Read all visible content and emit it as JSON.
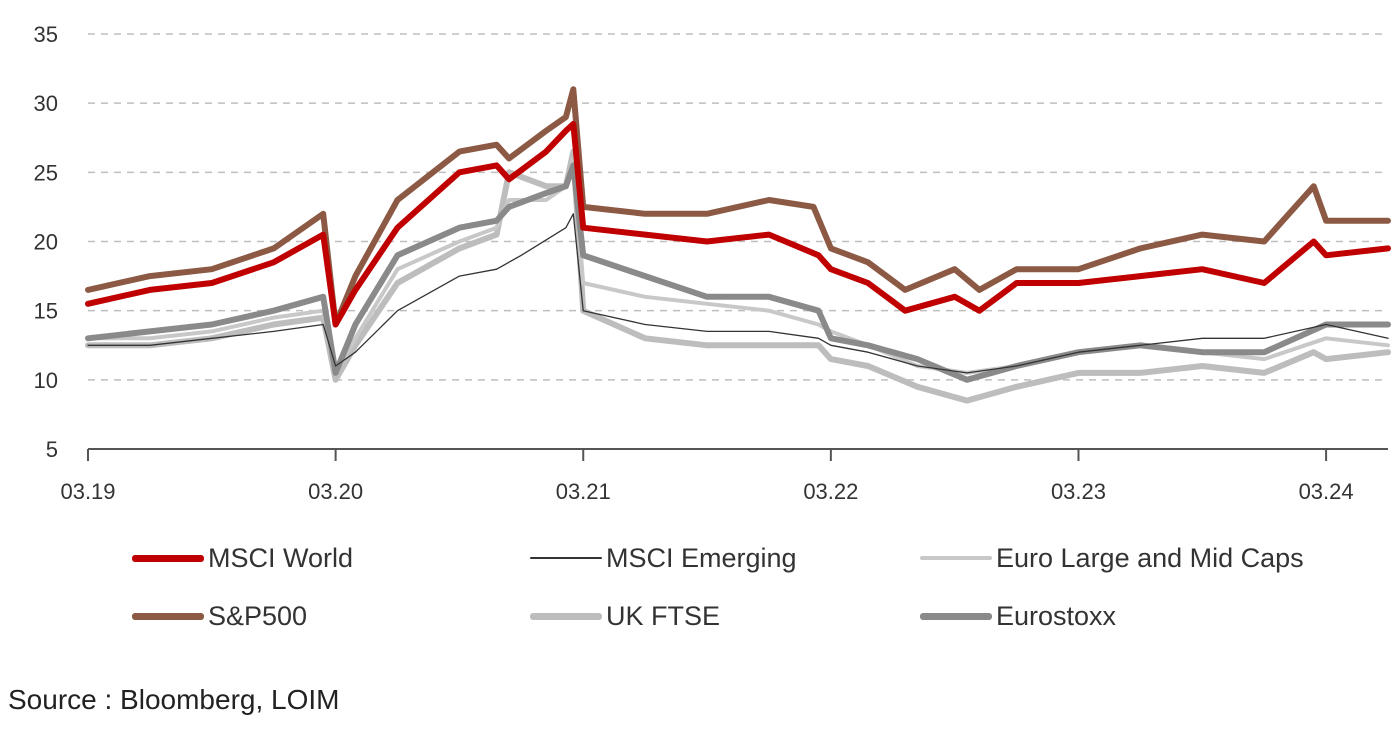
{
  "chart_data": {
    "type": "line",
    "title": "",
    "xlabel": "",
    "ylabel": "",
    "ylim": [
      5,
      35
    ],
    "yticks": [
      5,
      10,
      15,
      20,
      25,
      30,
      35
    ],
    "xlim": [
      2019.0,
      2024.25
    ],
    "xticks": [
      {
        "value": 2019,
        "label": "03.19"
      },
      {
        "value": 2020,
        "label": "03.20"
      },
      {
        "value": 2021,
        "label": "03.21"
      },
      {
        "value": 2022,
        "label": "03.22"
      },
      {
        "value": 2023,
        "label": "03.23"
      },
      {
        "value": 2024,
        "label": "03.24"
      }
    ],
    "grid": "horizontal-dashed",
    "legend_position": "bottom",
    "series": [
      {
        "name": "MSCI World",
        "color": "#c00000",
        "weight": "thick",
        "points": [
          [
            2019.0,
            15.5
          ],
          [
            2019.25,
            16.5
          ],
          [
            2019.5,
            17
          ],
          [
            2019.75,
            18.5
          ],
          [
            2019.95,
            20.5
          ],
          [
            2020.0,
            14
          ],
          [
            2020.08,
            16.5
          ],
          [
            2020.25,
            21
          ],
          [
            2020.5,
            25
          ],
          [
            2020.65,
            25.5
          ],
          [
            2020.7,
            24.5
          ],
          [
            2020.85,
            26.5
          ],
          [
            2020.93,
            28
          ],
          [
            2020.96,
            28.5
          ],
          [
            2021.0,
            21
          ],
          [
            2021.25,
            20.5
          ],
          [
            2021.5,
            20
          ],
          [
            2021.75,
            20.5
          ],
          [
            2021.95,
            19
          ],
          [
            2022.0,
            18
          ],
          [
            2022.15,
            17
          ],
          [
            2022.3,
            15
          ],
          [
            2022.5,
            16
          ],
          [
            2022.6,
            15
          ],
          [
            2022.75,
            17
          ],
          [
            2023.0,
            17
          ],
          [
            2023.25,
            17.5
          ],
          [
            2023.5,
            18
          ],
          [
            2023.75,
            17
          ],
          [
            2023.95,
            20
          ],
          [
            2024.0,
            19
          ],
          [
            2024.25,
            19.5
          ]
        ]
      },
      {
        "name": "MSCI Emerging",
        "color": "#333333",
        "weight": "thin",
        "points": [
          [
            2019.0,
            12.5
          ],
          [
            2019.25,
            12.5
          ],
          [
            2019.5,
            13
          ],
          [
            2019.75,
            13.5
          ],
          [
            2019.95,
            14
          ],
          [
            2020.0,
            11
          ],
          [
            2020.08,
            12
          ],
          [
            2020.25,
            15
          ],
          [
            2020.5,
            17.5
          ],
          [
            2020.65,
            18
          ],
          [
            2020.75,
            19
          ],
          [
            2020.93,
            21
          ],
          [
            2020.96,
            22
          ],
          [
            2021.0,
            15
          ],
          [
            2021.25,
            14
          ],
          [
            2021.5,
            13.5
          ],
          [
            2021.75,
            13.5
          ],
          [
            2021.95,
            13
          ],
          [
            2022.0,
            12.5
          ],
          [
            2022.15,
            12
          ],
          [
            2022.35,
            11
          ],
          [
            2022.55,
            10.5
          ],
          [
            2022.75,
            11
          ],
          [
            2023.0,
            12
          ],
          [
            2023.25,
            12.5
          ],
          [
            2023.5,
            13
          ],
          [
            2023.75,
            13
          ],
          [
            2024.0,
            14
          ],
          [
            2024.25,
            13
          ]
        ]
      },
      {
        "name": "Euro Large and Mid Caps",
        "color": "#c8c8c8",
        "weight": "medium",
        "points": [
          [
            2019.0,
            13
          ],
          [
            2019.25,
            13
          ],
          [
            2019.5,
            13.5
          ],
          [
            2019.75,
            14.5
          ],
          [
            2019.95,
            15
          ],
          [
            2020.0,
            10.5
          ],
          [
            2020.08,
            13
          ],
          [
            2020.25,
            18
          ],
          [
            2020.5,
            20
          ],
          [
            2020.65,
            21
          ],
          [
            2020.7,
            23
          ],
          [
            2020.85,
            23
          ],
          [
            2020.93,
            24
          ],
          [
            2020.96,
            26
          ],
          [
            2021.0,
            17
          ],
          [
            2021.25,
            16
          ],
          [
            2021.5,
            15.5
          ],
          [
            2021.75,
            15
          ],
          [
            2021.95,
            14
          ],
          [
            2022.0,
            13.5
          ],
          [
            2022.15,
            12.5
          ],
          [
            2022.35,
            11
          ],
          [
            2022.55,
            10.5
          ],
          [
            2022.75,
            11
          ],
          [
            2023.0,
            12
          ],
          [
            2023.25,
            12.5
          ],
          [
            2023.5,
            12
          ],
          [
            2023.75,
            11.5
          ],
          [
            2024.0,
            13
          ],
          [
            2024.25,
            12.5
          ]
        ]
      },
      {
        "name": "S&P500",
        "color": "#8c5a44",
        "weight": "thick",
        "points": [
          [
            2019.0,
            16.5
          ],
          [
            2019.25,
            17.5
          ],
          [
            2019.5,
            18
          ],
          [
            2019.75,
            19.5
          ],
          [
            2019.95,
            22
          ],
          [
            2020.0,
            14
          ],
          [
            2020.08,
            17.5
          ],
          [
            2020.25,
            23
          ],
          [
            2020.5,
            26.5
          ],
          [
            2020.65,
            27
          ],
          [
            2020.7,
            26
          ],
          [
            2020.85,
            28
          ],
          [
            2020.93,
            29
          ],
          [
            2020.96,
            31
          ],
          [
            2021.0,
            22.5
          ],
          [
            2021.25,
            22
          ],
          [
            2021.5,
            22
          ],
          [
            2021.75,
            23
          ],
          [
            2021.93,
            22.5
          ],
          [
            2022.0,
            19.5
          ],
          [
            2022.15,
            18.5
          ],
          [
            2022.3,
            16.5
          ],
          [
            2022.5,
            18
          ],
          [
            2022.6,
            16.5
          ],
          [
            2022.75,
            18
          ],
          [
            2023.0,
            18
          ],
          [
            2023.25,
            19.5
          ],
          [
            2023.5,
            20.5
          ],
          [
            2023.75,
            20
          ],
          [
            2023.95,
            24
          ],
          [
            2024.0,
            21.5
          ],
          [
            2024.25,
            21.5
          ]
        ]
      },
      {
        "name": "UK FTSE",
        "color": "#bdbdbd",
        "weight": "thick",
        "points": [
          [
            2019.0,
            12.5
          ],
          [
            2019.25,
            12.5
          ],
          [
            2019.5,
            13
          ],
          [
            2019.75,
            14
          ],
          [
            2019.95,
            14.5
          ],
          [
            2020.0,
            10
          ],
          [
            2020.08,
            12.5
          ],
          [
            2020.25,
            17
          ],
          [
            2020.5,
            19.5
          ],
          [
            2020.65,
            20.5
          ],
          [
            2020.7,
            25
          ],
          [
            2020.85,
            24
          ],
          [
            2020.93,
            24
          ],
          [
            2020.96,
            26.5
          ],
          [
            2021.0,
            15
          ],
          [
            2021.25,
            13
          ],
          [
            2021.5,
            12.5
          ],
          [
            2021.75,
            12.5
          ],
          [
            2021.95,
            12.5
          ],
          [
            2022.0,
            11.5
          ],
          [
            2022.15,
            11
          ],
          [
            2022.35,
            9.5
          ],
          [
            2022.55,
            8.5
          ],
          [
            2022.75,
            9.5
          ],
          [
            2023.0,
            10.5
          ],
          [
            2023.25,
            10.5
          ],
          [
            2023.5,
            11
          ],
          [
            2023.75,
            10.5
          ],
          [
            2023.95,
            12
          ],
          [
            2024.0,
            11.5
          ],
          [
            2024.25,
            12
          ]
        ]
      },
      {
        "name": "Eurostoxx",
        "color": "#8a8a8a",
        "weight": "thick",
        "points": [
          [
            2019.0,
            13
          ],
          [
            2019.25,
            13.5
          ],
          [
            2019.5,
            14
          ],
          [
            2019.75,
            15
          ],
          [
            2019.95,
            16
          ],
          [
            2020.0,
            10.5
          ],
          [
            2020.08,
            14
          ],
          [
            2020.25,
            19
          ],
          [
            2020.5,
            21
          ],
          [
            2020.65,
            21.5
          ],
          [
            2020.7,
            22.5
          ],
          [
            2020.85,
            23.5
          ],
          [
            2020.93,
            24
          ],
          [
            2020.96,
            25.5
          ],
          [
            2021.0,
            19
          ],
          [
            2021.25,
            17.5
          ],
          [
            2021.5,
            16
          ],
          [
            2021.75,
            16
          ],
          [
            2021.95,
            15
          ],
          [
            2022.0,
            13
          ],
          [
            2022.15,
            12.5
          ],
          [
            2022.35,
            11.5
          ],
          [
            2022.55,
            10
          ],
          [
            2022.75,
            11
          ],
          [
            2023.0,
            12
          ],
          [
            2023.25,
            12.5
          ],
          [
            2023.5,
            12
          ],
          [
            2023.75,
            12
          ],
          [
            2024.0,
            14
          ],
          [
            2024.25,
            14
          ]
        ]
      }
    ]
  },
  "legend": [
    {
      "label": "MSCI World"
    },
    {
      "label": "MSCI Emerging"
    },
    {
      "label": "Euro Large and Mid Caps"
    },
    {
      "label": "S&P500"
    },
    {
      "label": "UK FTSE"
    },
    {
      "label": "Eurostoxx"
    }
  ],
  "source": "Source : Bloomberg, LOIM"
}
